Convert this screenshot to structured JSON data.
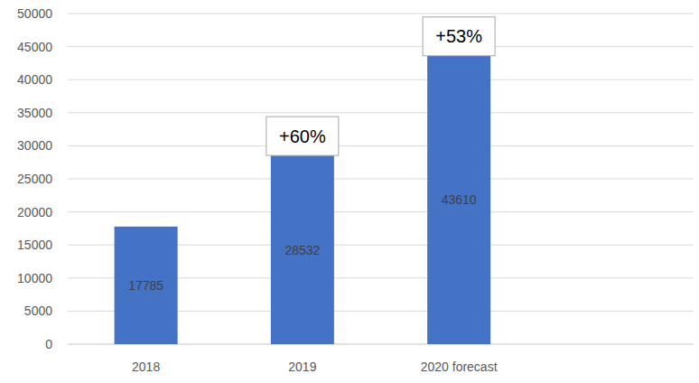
{
  "chart_data": {
    "type": "bar",
    "categories": [
      "2018",
      "2019",
      "2020 forecast"
    ],
    "values": [
      17785,
      28532,
      43610
    ],
    "color": "#4472c4",
    "ylim": [
      0,
      50000
    ],
    "yticks": [
      0,
      5000,
      10000,
      15000,
      20000,
      25000,
      30000,
      35000,
      40000,
      45000,
      50000
    ],
    "grid": true,
    "data_labels": true,
    "annotations": [
      {
        "text": "+60%",
        "category": "2019"
      },
      {
        "text": "+53%",
        "category": "2020 forecast"
      }
    ]
  }
}
